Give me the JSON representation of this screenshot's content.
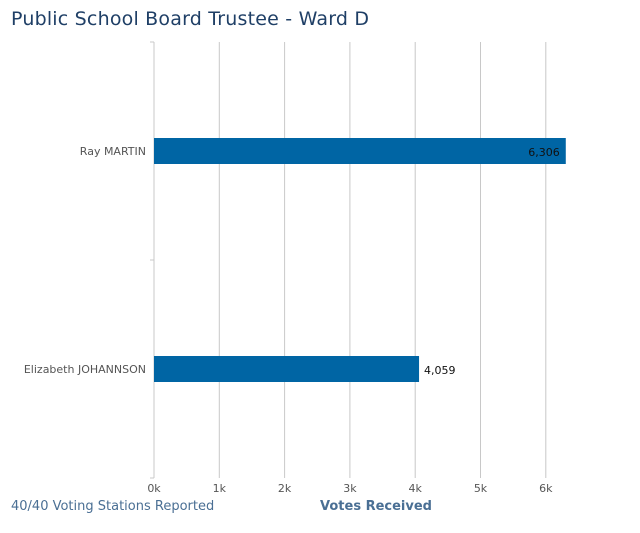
{
  "title": "Public School Board Trustee - Ward D",
  "footer": {
    "status": "40/40 Voting Stations Reported",
    "axis_label": "Votes Received"
  },
  "colors": {
    "bar": "#0065a4",
    "grid": "#c8c8c8",
    "title": "#1f3f66",
    "footer": "#4a6f94"
  },
  "chart_data": {
    "type": "bar",
    "orientation": "horizontal",
    "categories": [
      "Ray MARTIN",
      "Elizabeth JOHANNSON"
    ],
    "values": [
      6306,
      4059
    ],
    "value_labels": [
      "6,306",
      "4,059"
    ],
    "xlabel": "Votes Received",
    "ylabel": "",
    "xlim": [
      0,
      6500
    ],
    "xticks": [
      0,
      1000,
      2000,
      3000,
      4000,
      5000,
      6000
    ],
    "xtick_labels": [
      "0k",
      "1k",
      "2k",
      "3k",
      "4k",
      "5k",
      "6k"
    ],
    "grid": true
  }
}
